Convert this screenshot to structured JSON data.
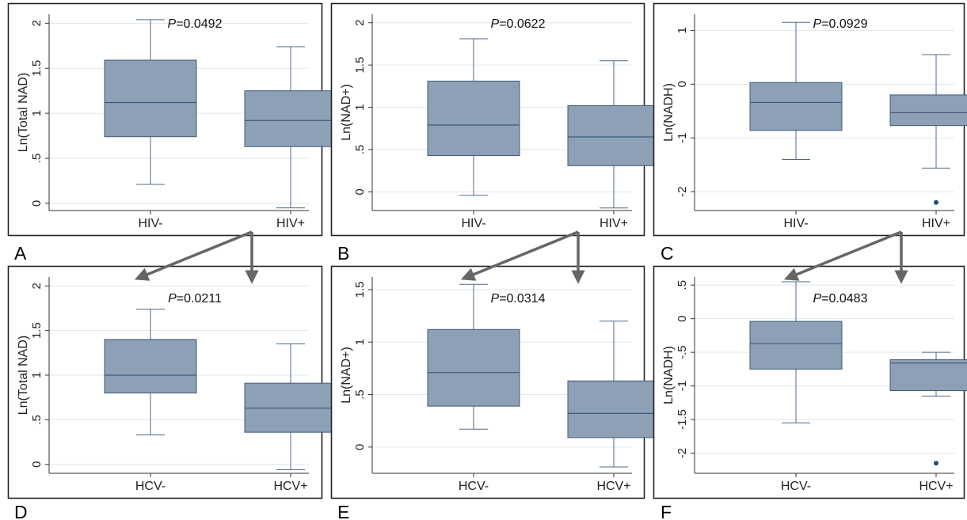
{
  "style": {
    "box_fill": "#8da0b6",
    "box_stroke": "#3e5a78",
    "whisker_color": "#4c6b8c",
    "outlier_color": "#1f4e79",
    "grid_color": "#e3e6ea",
    "arrow_color": "#666666",
    "frame_color": "#222222"
  },
  "chart_data": [
    {
      "panel": "A",
      "type": "box",
      "ylabel": "Ln(Total NAD)",
      "ylim": [
        -0.08,
        2.1
      ],
      "yticks": [
        {
          "v": 0,
          "t": "0"
        },
        {
          "v": 0.5,
          "t": ".5"
        },
        {
          "v": 1,
          "t": "1"
        },
        {
          "v": 1.5,
          "t": "1.5"
        },
        {
          "v": 2,
          "t": "2"
        }
      ],
      "categories": [
        "HIV-",
        "HIV+"
      ],
      "boxes": [
        {
          "min": 0.21,
          "q1": 0.74,
          "median": 1.12,
          "q3": 1.59,
          "max": 2.04,
          "outliers": []
        },
        {
          "min": -0.05,
          "q1": 0.63,
          "median": 0.92,
          "q3": 1.25,
          "max": 1.74,
          "outliers": []
        }
      ],
      "p_label": "P",
      "p_value": "=0.0492"
    },
    {
      "panel": "B",
      "type": "box",
      "ylabel": "Ln(NAD+)",
      "ylim": [
        -0.22,
        2.1
      ],
      "yticks": [
        {
          "v": 0,
          "t": "0"
        },
        {
          "v": 0.5,
          "t": ".5"
        },
        {
          "v": 1,
          "t": "1"
        },
        {
          "v": 1.5,
          "t": "1.5"
        },
        {
          "v": 2,
          "t": "2"
        }
      ],
      "categories": [
        "HIV-",
        "HIV+"
      ],
      "boxes": [
        {
          "min": -0.04,
          "q1": 0.43,
          "median": 0.79,
          "q3": 1.31,
          "max": 1.81,
          "outliers": []
        },
        {
          "min": -0.19,
          "q1": 0.31,
          "median": 0.65,
          "q3": 1.02,
          "max": 1.55,
          "outliers": []
        }
      ],
      "p_label": "P",
      "p_value": "=0.0622"
    },
    {
      "panel": "C",
      "type": "box",
      "ylabel": "Ln(NADH)",
      "ylim": [
        -2.35,
        1.3
      ],
      "yticks": [
        {
          "v": -2,
          "t": "-2"
        },
        {
          "v": -1,
          "t": "-1"
        },
        {
          "v": 0,
          "t": "0"
        },
        {
          "v": 1,
          "t": "1"
        }
      ],
      "categories": [
        "HIV-",
        "HIV+"
      ],
      "boxes": [
        {
          "min": -1.4,
          "q1": -0.86,
          "median": -0.34,
          "q3": 0.03,
          "max": 1.15,
          "outliers": []
        },
        {
          "min": -1.56,
          "q1": -0.77,
          "median": -0.53,
          "q3": -0.2,
          "max": 0.55,
          "outliers": [
            -2.2
          ]
        }
      ],
      "p_label": "P",
      "p_value": "=0.0929"
    },
    {
      "panel": "D",
      "type": "box",
      "ylabel": "Ln(Total NAD)",
      "ylim": [
        -0.1,
        2.1
      ],
      "yticks": [
        {
          "v": 0,
          "t": "0"
        },
        {
          "v": 0.5,
          "t": ".5"
        },
        {
          "v": 1,
          "t": "1"
        },
        {
          "v": 1.5,
          "t": "1.5"
        },
        {
          "v": 2,
          "t": "2"
        }
      ],
      "categories": [
        "HCV-",
        "HCV+"
      ],
      "boxes": [
        {
          "min": 0.33,
          "q1": 0.8,
          "median": 1.0,
          "q3": 1.4,
          "max": 1.74,
          "outliers": []
        },
        {
          "min": -0.06,
          "q1": 0.36,
          "median": 0.63,
          "q3": 0.91,
          "max": 1.35,
          "outliers": []
        }
      ],
      "p_label": "P",
      "p_value": "=0.0211"
    },
    {
      "panel": "E",
      "type": "box",
      "ylabel": "Ln(NAD+)",
      "ylim": [
        -0.25,
        1.62
      ],
      "yticks": [
        {
          "v": 0,
          "t": "0"
        },
        {
          "v": 0.5,
          "t": ".5"
        },
        {
          "v": 1,
          "t": "1"
        },
        {
          "v": 1.5,
          "t": "1.5"
        }
      ],
      "categories": [
        "HCV-",
        "HCV+"
      ],
      "boxes": [
        {
          "min": 0.17,
          "q1": 0.39,
          "median": 0.71,
          "q3": 1.12,
          "max": 1.55,
          "outliers": []
        },
        {
          "min": -0.19,
          "q1": 0.09,
          "median": 0.32,
          "q3": 0.63,
          "max": 1.2,
          "outliers": []
        }
      ],
      "p_label": "P",
      "p_value": "=0.0314"
    },
    {
      "panel": "F",
      "type": "box",
      "ylabel": "Ln(NADH)",
      "ylim": [
        -2.3,
        0.62
      ],
      "yticks": [
        {
          "v": -2,
          "t": "-2"
        },
        {
          "v": -1.5,
          "t": "-1.5"
        },
        {
          "v": -1,
          "t": "-1"
        },
        {
          "v": -0.5,
          "t": "-.5"
        },
        {
          "v": 0,
          "t": "0"
        },
        {
          "v": 0.5,
          "t": ".5"
        }
      ],
      "categories": [
        "HCV-",
        "HCV+"
      ],
      "boxes": [
        {
          "min": -1.55,
          "q1": -0.75,
          "median": -0.37,
          "q3": -0.04,
          "max": 0.55,
          "outliers": []
        },
        {
          "min": -1.15,
          "q1": -1.07,
          "median": -0.66,
          "q3": -0.61,
          "max": -0.5,
          "outliers": [
            -2.15
          ]
        }
      ],
      "p_label": "P",
      "p_value": "=0.0483"
    }
  ]
}
